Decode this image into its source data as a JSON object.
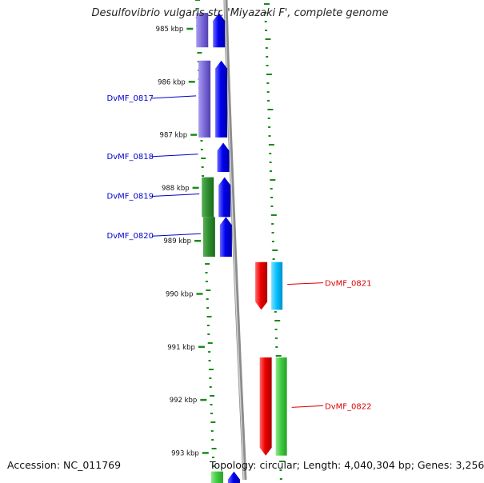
{
  "title": "Desulfovibrio vulgaris str. 'Miyazaki F', complete genome",
  "footer": {
    "accession": "Accession: NC_011769",
    "topology": "Topology: circular; Length: 4,040,304 bp; Genes: 3,256"
  },
  "ruler": [
    {
      "label": "985 kbp",
      "kbp": 985
    },
    {
      "label": "986 kbp",
      "kbp": 986
    },
    {
      "label": "987 kbp",
      "kbp": 987
    },
    {
      "label": "988 kbp",
      "kbp": 988
    },
    {
      "label": "989 kbp",
      "kbp": 989
    },
    {
      "label": "990 kbp",
      "kbp": 990
    },
    {
      "label": "991 kbp",
      "kbp": 991
    },
    {
      "label": "992 kbp",
      "kbp": 992
    },
    {
      "label": "993 kbp",
      "kbp": 993
    }
  ],
  "genes": [
    {
      "label": "",
      "strand": "reverse",
      "start_kbp": 984.7,
      "end_kbp": 985.35
    },
    {
      "label": "DvMF_0817",
      "strand": "reverse",
      "start_kbp": 985.6,
      "end_kbp": 987.05
    },
    {
      "label": "DvMF_0818",
      "strand": "reverse",
      "start_kbp": 987.15,
      "end_kbp": 987.7
    },
    {
      "label": "DvMF_0819",
      "strand": "reverse",
      "start_kbp": 987.8,
      "end_kbp": 988.55
    },
    {
      "label": "DvMF_0820",
      "strand": "reverse",
      "start_kbp": 988.55,
      "end_kbp": 989.3
    },
    {
      "label": "DvMF_0821",
      "strand": "forward",
      "start_kbp": 989.4,
      "end_kbp": 990.3
    },
    {
      "label": "DvMF_0822",
      "strand": "forward",
      "start_kbp": 991.2,
      "end_kbp": 993.05
    },
    {
      "label": "",
      "strand": "reverse",
      "start_kbp": 993.35,
      "end_kbp": 993.6
    }
  ],
  "colors": {
    "reverse_cds": "#0000ee",
    "forward_cds": "#ee0000",
    "reverse_feature_a": "#7b68d8",
    "reverse_feature_b": "#2e8b2e",
    "forward_feature": "#00bfff",
    "forward_feature_b": "#3ec83e",
    "reverse_label": "#0000cc",
    "forward_label": "#dd0000",
    "gc_ticks": "#1a8a1a",
    "backbone": "#8c8c8c"
  }
}
